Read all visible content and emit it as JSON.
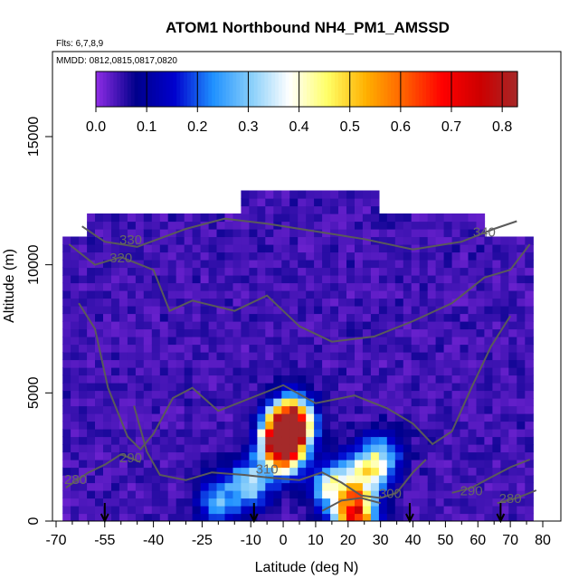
{
  "chart_data": {
    "type": "heatmap",
    "title": "ATOM1 Northbound NH4_PM1_AMSSD",
    "notes": [
      "Flts: 6,7,8,9",
      "MMDD: 0812,0815,0817,0820"
    ],
    "xlabel": "Latitude (deg N)",
    "ylabel": "Altitude (m)",
    "xlim": [
      -70,
      80
    ],
    "ylim": [
      0,
      17500
    ],
    "xticks": [
      -70,
      -55,
      -40,
      -25,
      -10,
      0,
      10,
      20,
      30,
      40,
      50,
      60,
      70,
      80
    ],
    "xtick_labels": [
      "-70",
      "-55",
      "-40",
      "-25",
      "-10",
      "0",
      "10",
      "20",
      "30",
      "40",
      "50",
      "60",
      "70",
      "80"
    ],
    "yticks": [
      0,
      5000,
      10000,
      15000
    ],
    "ytick_labels": [
      "0",
      "5000",
      "10000",
      "15000"
    ],
    "colorbar": {
      "range": [
        0.0,
        0.83
      ],
      "ticks": [
        0.0,
        0.1,
        0.2,
        0.3,
        0.4,
        0.5,
        0.6,
        0.7,
        0.8
      ],
      "tick_labels": [
        "0.0",
        "0.1",
        "0.2",
        "0.3",
        "0.4",
        "0.5",
        "0.6",
        "0.7",
        "0.8"
      ],
      "colors": [
        "#8a2be2",
        "#00008b",
        "#0000cd",
        "#1e90ff",
        "#87cefa",
        "#ffffff",
        "#ffff66",
        "#ffb000",
        "#ff6000",
        "#ff0000",
        "#cc0000",
        "#a52a2a"
      ]
    },
    "background_value": 0.02,
    "hotspots": [
      {
        "lat": 0,
        "alt": 3300,
        "value": 0.8
      },
      {
        "lat": 3,
        "alt": 4000,
        "value": 0.6
      },
      {
        "lat": 0,
        "alt": 2700,
        "value": 0.45
      },
      {
        "lat": 22,
        "alt": 300,
        "value": 0.65
      },
      {
        "lat": 15,
        "alt": 1400,
        "value": 0.32
      },
      {
        "lat": 25,
        "alt": 1800,
        "value": 0.3
      },
      {
        "lat": -10,
        "alt": 1500,
        "value": 0.3
      },
      {
        "lat": -20,
        "alt": 800,
        "value": 0.22
      },
      {
        "lat": 30,
        "alt": 2500,
        "value": 0.25
      }
    ],
    "contour_labels": [
      {
        "text": "330",
        "lat": -47,
        "alt": 10800
      },
      {
        "text": "320",
        "lat": -50,
        "alt": 10100
      },
      {
        "text": "340",
        "lat": 62,
        "alt": 11100
      },
      {
        "text": "310",
        "lat": -5,
        "alt": 1850
      },
      {
        "text": "300",
        "lat": 33,
        "alt": 900
      },
      {
        "text": "290",
        "lat": -47,
        "alt": 2300
      },
      {
        "text": "280",
        "lat": -64,
        "alt": 1450
      },
      {
        "text": "290",
        "lat": 58,
        "alt": 1000
      },
      {
        "text": "280",
        "lat": 70,
        "alt": 700
      }
    ],
    "arrows_lat": [
      -55,
      -9,
      39,
      67
    ]
  }
}
